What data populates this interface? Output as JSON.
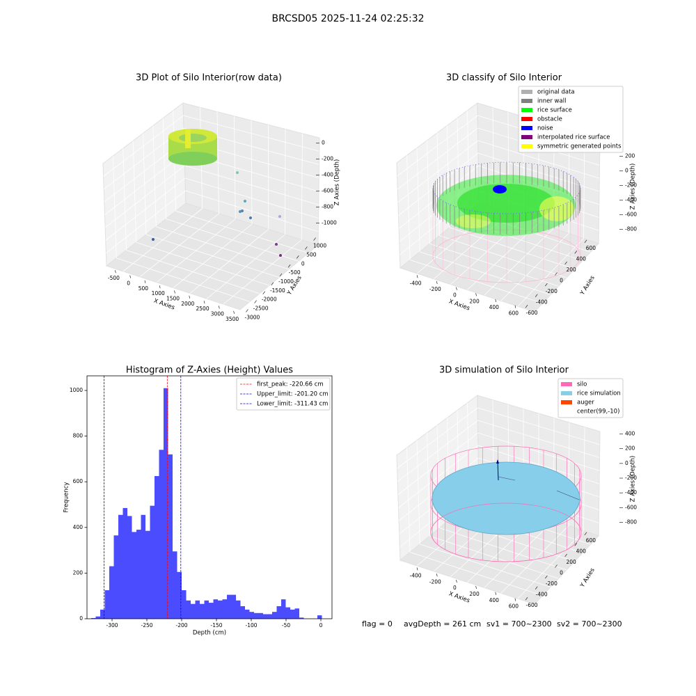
{
  "suptitle": "BRCSD05 2025-11-24 02:25:32",
  "chart_data": [
    {
      "type": "scatter3d",
      "title": "3D Plot of Silo Interior(row data)",
      "xlabel": "X Axies",
      "ylabel": "Y Axies",
      "zlabel": "Z Axies (Depth)",
      "xlim": [
        -650,
        3650
      ],
      "xticks": [
        -500,
        0,
        500,
        1000,
        1500,
        2000,
        2500,
        3000,
        3500
      ],
      "ylim": [
        1100,
        -3100
      ],
      "yticks": [
        1000,
        500,
        0,
        -500,
        -1000,
        -1500,
        -2000,
        -2500,
        -3000
      ],
      "zlim": [
        50,
        -1050
      ],
      "zticks": [
        0,
        -200,
        -400,
        -600,
        -800,
        -1000
      ]
    },
    {
      "type": "scatter3d",
      "title": "3D classify of Silo Interior",
      "xlabel": "X Axies",
      "ylabel": "Y Axies",
      "zlabel": "Z Axies (Depth)",
      "xlim": [
        -500,
        700
      ],
      "xticks": [
        -400,
        -200,
        0,
        200,
        400,
        600
      ],
      "ylim": [
        700,
        -700
      ],
      "yticks": [
        600,
        400,
        200,
        0,
        -200,
        -400,
        -600
      ],
      "zlim": [
        300,
        -900
      ],
      "zticks": [
        200,
        0,
        -200,
        -400,
        -600,
        -800
      ],
      "legend_loc": "upper right",
      "legend": [
        {
          "name": "original data",
          "color": "#b0b0b0"
        },
        {
          "name": "inner wall",
          "color": "#808080"
        },
        {
          "name": "rice surface",
          "color": "#00ff00"
        },
        {
          "name": "obstacle",
          "color": "#ff0000"
        },
        {
          "name": "noise",
          "color": "#0000ff"
        },
        {
          "name": "interpolated rice surface",
          "color": "#800080"
        },
        {
          "name": "symmetric generated points",
          "color": "#ffff00"
        }
      ]
    },
    {
      "type": "histogram",
      "title": "Histogram of Z-Axies (Height) Values",
      "xlabel": "Depth (cm)",
      "ylabel": "Frequency",
      "color": "#0000ff",
      "alpha": 0.7,
      "bins": [
        -330,
        -323.5,
        -317,
        -310.5,
        -304,
        -297.5,
        -291,
        -284.5,
        -278,
        -271.5,
        -265,
        -258.5,
        -252,
        -245.5,
        -239,
        -232.5,
        -226,
        -219.5,
        -213,
        -206.5,
        -200,
        -193.5,
        -187,
        -180.5,
        -174,
        -167.5,
        -161,
        -154.5,
        -148,
        -141.5,
        -135,
        -128.5,
        -122,
        -115.5,
        -109,
        -102.5,
        -96,
        -89.5,
        -83,
        -76.5,
        -70,
        -63.5,
        -57,
        -50.5,
        -44,
        -37.5,
        -31,
        -24.5,
        -18,
        -11.5,
        -5,
        1.5
      ],
      "values": [
        3,
        10,
        40,
        125,
        230,
        365,
        455,
        485,
        450,
        380,
        390,
        455,
        385,
        495,
        625,
        740,
        1010,
        720,
        295,
        205,
        125,
        80,
        65,
        80,
        65,
        80,
        70,
        85,
        80,
        85,
        105,
        105,
        80,
        55,
        40,
        30,
        25,
        25,
        20,
        20,
        30,
        55,
        85,
        50,
        40,
        45,
        5,
        0,
        0,
        0,
        15
      ],
      "xlim": [
        -336,
        16
      ],
      "xticks": [
        -300,
        -250,
        -200,
        -150,
        -100,
        -50,
        0
      ],
      "ylim": [
        0,
        1064
      ],
      "yticks": [
        0,
        200,
        400,
        600,
        800,
        1000
      ],
      "legend_loc": "upper right",
      "lines": [
        {
          "name": "first_peak: -220.66 cm",
          "value": -220.66,
          "color": "#ff0000"
        },
        {
          "name": "Upper_limit: -201.20 cm",
          "value": -201.2,
          "color": "#0000ff"
        },
        {
          "name": "Lower_limit: -311.43 cm",
          "value": -311.43,
          "color": "#0000ff"
        }
      ]
    },
    {
      "type": "surface3d",
      "title": "3D simulation of Silo Interior",
      "xlabel": "X Axies",
      "ylabel": "Y Axies",
      "zlabel": "Z Axies (Depth)",
      "xlim": [
        -500,
        700
      ],
      "xticks": [
        -400,
        -200,
        0,
        200,
        400,
        600
      ],
      "ylim": [
        700,
        -700
      ],
      "yticks": [
        600,
        400,
        200,
        0,
        -200,
        -400,
        -600
      ],
      "zlim": [
        500,
        -900
      ],
      "zticks": [
        400,
        200,
        0,
        -200,
        -400,
        -600,
        -800
      ],
      "legend_loc": "upper right",
      "legend": [
        {
          "name": "silo",
          "color": "#ff69b4"
        },
        {
          "name": "rice simulation",
          "color": "#87ceeb"
        },
        {
          "name": "auger",
          "color": "#ff4500"
        },
        {
          "name": "center(99,-10)",
          "color": "#ffffff"
        }
      ]
    }
  ],
  "footer": [
    "flag = 0",
    "avgDepth = 261 cm",
    "sv1 = 700~2300",
    "sv2 = 700~2300"
  ]
}
